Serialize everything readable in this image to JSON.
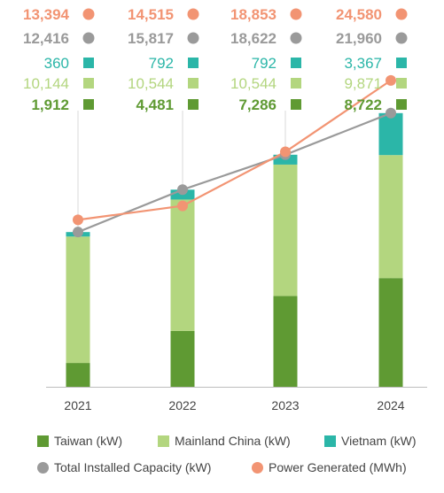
{
  "colors": {
    "taiwan": "#5f9a33",
    "mainland": "#b3d67f",
    "vietnam": "#2bb6a8",
    "capacity": "#9a9a9a",
    "power": "#f29473",
    "axis": "#bdbdbd",
    "gridline": "#d9d9d9",
    "tick_text": "#444444"
  },
  "chart_data": {
    "type": "bar",
    "stacked": true,
    "categories": [
      "2021",
      "2022",
      "2023",
      "2024"
    ],
    "series": [
      {
        "name": "Taiwan (kW)",
        "kind": "bar",
        "color_key": "taiwan",
        "values": [
          1912,
          4481,
          7286,
          8722
        ]
      },
      {
        "name": "Mainland China (kW)",
        "kind": "bar",
        "color_key": "mainland",
        "values": [
          10144,
          10544,
          10544,
          9871
        ]
      },
      {
        "name": "Vietnam (kW)",
        "kind": "bar",
        "color_key": "vietnam",
        "values": [
          360,
          792,
          792,
          3367
        ]
      },
      {
        "name": "Total Installed Capacity (kW)",
        "kind": "line",
        "color_key": "capacity",
        "values": [
          12416,
          15817,
          18622,
          21960
        ]
      },
      {
        "name": "Power Generated (MWh)",
        "kind": "line",
        "color_key": "power",
        "values": [
          13394,
          14515,
          18853,
          24580
        ]
      }
    ],
    "value_labels": [
      {
        "color_key": "power",
        "marker": "circle",
        "bold": true,
        "labels": [
          "13,394",
          "14,515",
          "18,853",
          "24,580"
        ]
      },
      {
        "color_key": "capacity",
        "marker": "circle",
        "bold": true,
        "labels": [
          "12,416",
          "15,817",
          "18,622",
          "21,960"
        ]
      },
      {
        "color_key": "vietnam",
        "marker": "square",
        "bold": false,
        "labels": [
          "360",
          "792",
          "792",
          "3,367"
        ]
      },
      {
        "color_key": "mainland",
        "marker": "square",
        "bold": false,
        "labels": [
          "10,144",
          "10,544",
          "10,544",
          "9,871"
        ]
      },
      {
        "color_key": "taiwan",
        "marker": "square",
        "bold": true,
        "labels": [
          "1,912",
          "4,481",
          "7,286",
          "8,722"
        ]
      }
    ],
    "legend_position": "bottom",
    "grid": false,
    "ylim": [
      0,
      30000
    ]
  }
}
